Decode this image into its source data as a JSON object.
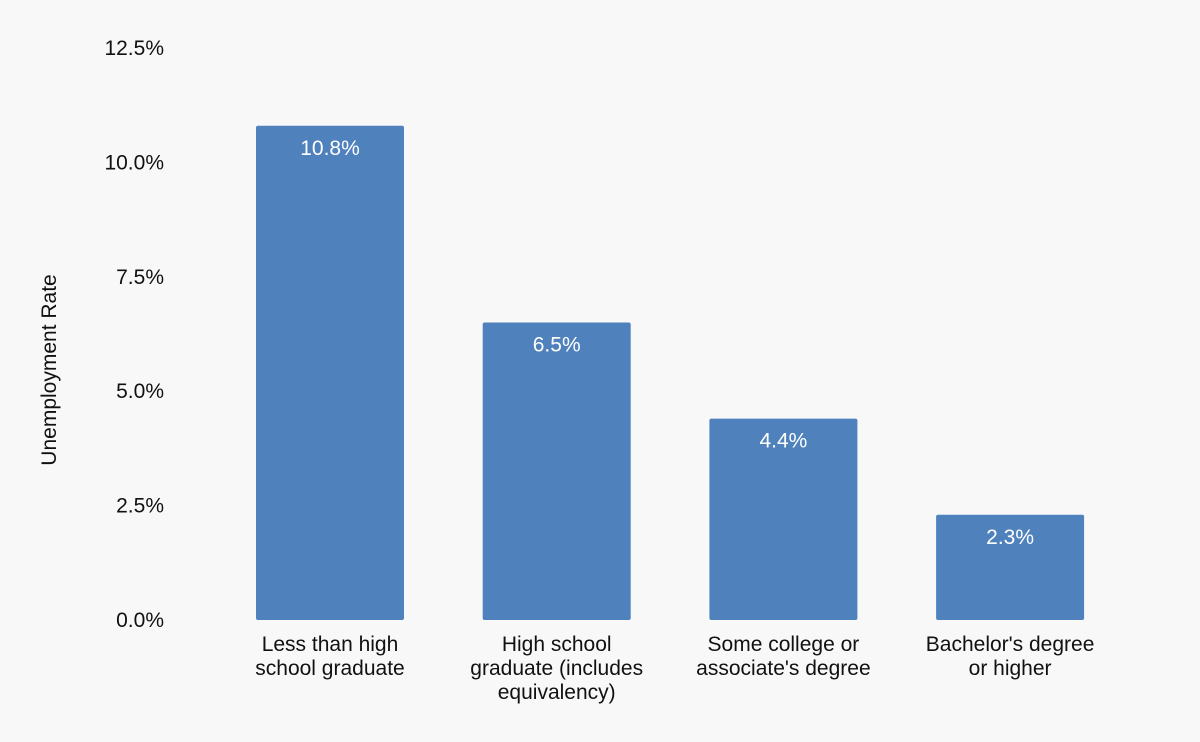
{
  "chart_data": {
    "type": "bar",
    "title": "",
    "xlabel": "",
    "ylabel": "Unemployment Rate",
    "categories": [
      [
        "Less than high",
        "school graduate"
      ],
      [
        "High school",
        "graduate (includes",
        "equivalency)"
      ],
      [
        "Some college or",
        "associate's degree"
      ],
      [
        "Bachelor's degree",
        "or higher"
      ]
    ],
    "values": [
      10.8,
      6.5,
      4.4,
      2.3
    ],
    "data_labels": [
      "10.8%",
      "6.5%",
      "4.4%",
      "2.3%"
    ],
    "ylim": [
      0,
      12.5
    ],
    "yticks": [
      0,
      2.5,
      5.0,
      7.5,
      10.0,
      12.5
    ],
    "ytick_labels": [
      "0.0%",
      "2.5%",
      "5.0%",
      "7.5%",
      "10.0%",
      "12.5%"
    ],
    "grid": false,
    "colors": {
      "bar": "#4f81bd",
      "background": "#f8f8f8"
    }
  }
}
